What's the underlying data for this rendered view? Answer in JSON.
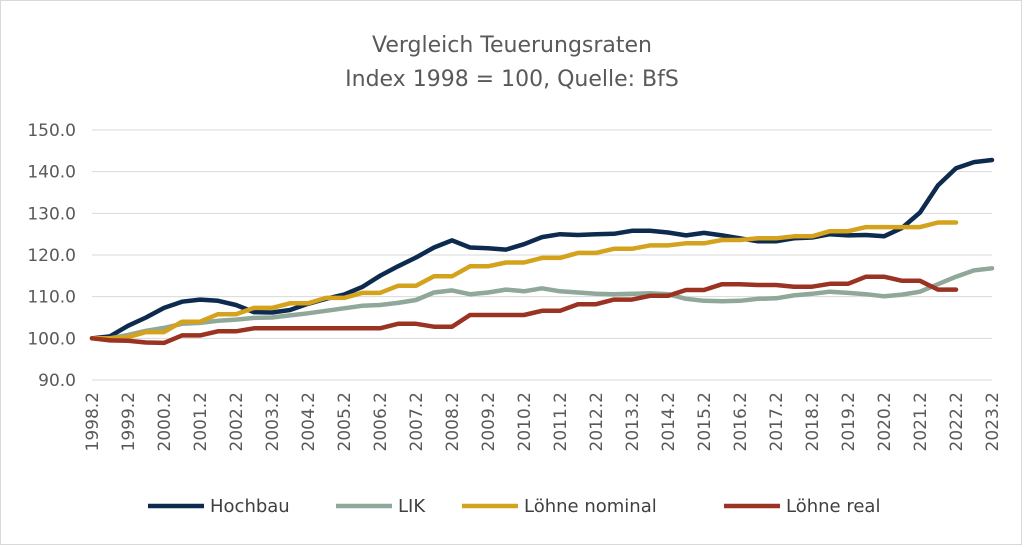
{
  "chart_data": {
    "type": "line",
    "title": "Vergleich Teuerungsraten",
    "subtitle": "Index 1998 = 100, Quelle: BfS",
    "xlabel": "",
    "ylabel": "",
    "ylim": [
      90,
      150
    ],
    "y_ticks": [
      "150.0",
      "140.0",
      "130.0",
      "120.0",
      "110.0",
      "100.0",
      "90.0"
    ],
    "y_tick_values": [
      150,
      140,
      130,
      120,
      110,
      100,
      90
    ],
    "grid": "horizontal",
    "legend_position": "bottom",
    "x_tick_labels": [
      "1998.2",
      "1999.2",
      "2000.2",
      "2001.2",
      "2002.2",
      "2003.2",
      "2004.2",
      "2005.2",
      "2006.2",
      "2007.2",
      "2008.2",
      "2009.2",
      "2010.2",
      "2011.2",
      "2012.2",
      "2013.2",
      "2014.2",
      "2015.2",
      "2016.2",
      "2017.2",
      "2018.2",
      "2019.2",
      "2020.2",
      "2021.2",
      "2022.2",
      "2023.2"
    ],
    "x_start": 1998.5,
    "x_end": 2023.5,
    "series": [
      {
        "name": "Hochbau",
        "color": "#0d2b4e",
        "x": [
          1998.5,
          1999,
          1999.5,
          2000,
          2000.5,
          2001,
          2001.5,
          2002,
          2002.5,
          2003,
          2003.5,
          2004,
          2004.5,
          2005,
          2005.5,
          2006,
          2006.5,
          2007,
          2007.5,
          2008,
          2008.5,
          2009,
          2009.5,
          2010,
          2010.5,
          2011,
          2011.5,
          2012,
          2012.5,
          2013,
          2013.5,
          2014,
          2014.5,
          2015,
          2015.5,
          2016,
          2016.5,
          2017,
          2017.5,
          2018,
          2018.5,
          2019,
          2019.5,
          2020,
          2020.5,
          2021,
          2021.5,
          2022,
          2022.5,
          2023,
          2023.5
        ],
        "values": [
          100,
          100.5,
          103,
          105,
          107.3,
          108.8,
          109.3,
          109,
          108,
          106.3,
          106.2,
          106.8,
          108.3,
          109.5,
          110.5,
          112.3,
          115,
          117.3,
          119.4,
          121.8,
          123.5,
          121.8,
          121.6,
          121.3,
          122.6,
          124.3,
          125,
          124.8,
          125,
          125.1,
          125.8,
          125.8,
          125.4,
          124.7,
          125.3,
          124.7,
          124,
          123.3,
          123.3,
          124,
          124.2,
          125,
          124.7,
          124.8,
          124.5,
          126.5,
          130.2,
          136.7,
          140.8,
          142.3,
          142.8
        ]
      },
      {
        "name": "LIK",
        "color": "#8fa89a",
        "x": [
          1998.5,
          1999,
          1999.5,
          2000,
          2000.5,
          2001,
          2001.5,
          2002,
          2002.5,
          2003,
          2003.5,
          2004,
          2004.5,
          2005,
          2005.5,
          2006,
          2006.5,
          2007,
          2007.5,
          2008,
          2008.5,
          2009,
          2009.5,
          2010,
          2010.5,
          2011,
          2011.5,
          2012,
          2012.5,
          2013,
          2013.5,
          2014,
          2014.5,
          2015,
          2015.5,
          2016,
          2016.5,
          2017,
          2017.5,
          2018,
          2018.5,
          2019,
          2019.5,
          2020,
          2020.5,
          2021,
          2021.5,
          2022,
          2022.5,
          2023,
          2023.5
        ],
        "values": [
          100,
          100,
          100.8,
          101.8,
          102.5,
          103.5,
          103.7,
          104.2,
          104.5,
          104.9,
          105,
          105.5,
          106,
          106.6,
          107.2,
          107.8,
          108,
          108.5,
          109.2,
          111,
          111.5,
          110.6,
          111,
          111.7,
          111.3,
          112,
          111.3,
          111,
          110.7,
          110.6,
          110.7,
          110.8,
          110.6,
          109.5,
          109,
          108.9,
          109,
          109.5,
          109.6,
          110.3,
          110.7,
          111.2,
          110.9,
          110.6,
          110.1,
          110.5,
          111.2,
          113,
          114.8,
          116.3,
          116.8
        ]
      },
      {
        "name": "Löhne nominal",
        "color": "#d4a21c",
        "x": [
          1998.5,
          1999,
          1999.5,
          2000,
          2000.5,
          2001,
          2001.5,
          2002,
          2002.5,
          2003,
          2003.5,
          2004,
          2004.5,
          2005,
          2005.5,
          2006,
          2006.5,
          2007,
          2007.5,
          2008,
          2008.5,
          2009,
          2009.5,
          2010,
          2010.5,
          2011,
          2011.5,
          2012,
          2012.5,
          2013,
          2013.5,
          2014,
          2014.5,
          2015,
          2015.5,
          2016,
          2016.5,
          2017,
          2017.5,
          2018,
          2018.5,
          2019,
          2019.5,
          2020,
          2020.5,
          2021,
          2021.5,
          2022,
          2022.5
        ],
        "values": [
          100,
          100,
          100.3,
          101.5,
          101.5,
          104,
          104,
          105.8,
          105.8,
          107.3,
          107.3,
          108.4,
          108.4,
          109.7,
          109.7,
          110.9,
          110.9,
          112.6,
          112.6,
          114.9,
          114.9,
          117.3,
          117.3,
          118.2,
          118.2,
          119.3,
          119.3,
          120.5,
          120.5,
          121.5,
          121.5,
          122.3,
          122.3,
          122.8,
          122.8,
          123.6,
          123.6,
          124,
          124,
          124.5,
          124.5,
          125.7,
          125.7,
          126.7,
          126.7,
          126.7,
          126.7,
          127.8,
          127.8
        ]
      },
      {
        "name": "Löhne real",
        "color": "#9b3322",
        "x": [
          1998.5,
          1999,
          1999.5,
          2000,
          2000.5,
          2001,
          2001.5,
          2002,
          2002.5,
          2003,
          2003.5,
          2004,
          2004.5,
          2005,
          2005.5,
          2006,
          2006.5,
          2007,
          2007.5,
          2008,
          2008.5,
          2009,
          2009.5,
          2010,
          2010.5,
          2011,
          2011.5,
          2012,
          2012.5,
          2013,
          2013.5,
          2014,
          2014.5,
          2015,
          2015.5,
          2016,
          2016.5,
          2017,
          2017.5,
          2018,
          2018.5,
          2019,
          2019.5,
          2020,
          2020.5,
          2021,
          2021.5,
          2022,
          2022.5
        ],
        "values": [
          100,
          99.5,
          99.4,
          99,
          98.9,
          100.7,
          100.7,
          101.7,
          101.7,
          102.4,
          102.4,
          102.4,
          102.4,
          102.4,
          102.4,
          102.4,
          102.4,
          103.5,
          103.5,
          102.8,
          102.8,
          105.6,
          105.6,
          105.6,
          105.6,
          106.6,
          106.6,
          108.2,
          108.2,
          109.3,
          109.3,
          110.2,
          110.2,
          111.6,
          111.6,
          113,
          113,
          112.8,
          112.8,
          112.4,
          112.4,
          113.1,
          113.1,
          114.8,
          114.8,
          113.8,
          113.8,
          111.7,
          111.7
        ]
      }
    ]
  }
}
